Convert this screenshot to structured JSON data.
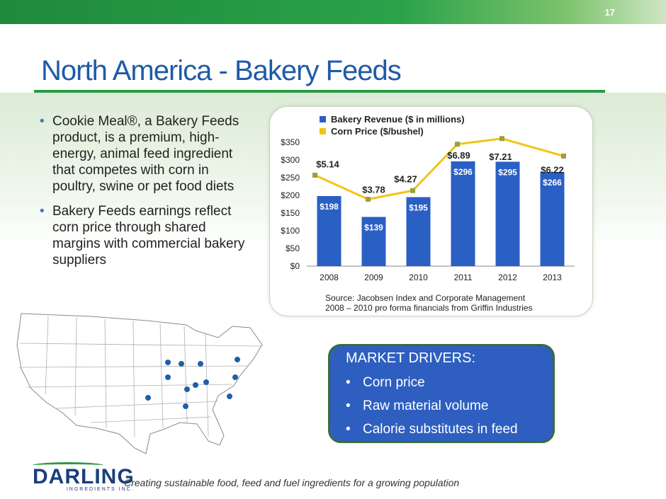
{
  "page_number": "17",
  "title": "North America - Bakery Feeds",
  "bullets": [
    "Cookie Meal®, a Bakery Feeds product, is a premium, high-energy, animal feed ingredient that competes with corn in poultry, swine or pet food diets",
    "Bakery Feeds earnings reflect corn price through shared margins with commercial bakery suppliers"
  ],
  "chart_data": {
    "type": "bar",
    "categories": [
      "2008",
      "2009",
      "2010",
      "2011",
      "2012",
      "2013"
    ],
    "series": [
      {
        "name": "Bakery Revenue ($ in millions)",
        "type": "bar",
        "values": [
          198,
          139,
          195,
          296,
          295,
          266
        ],
        "labels": [
          "$198",
          "$139",
          "$195",
          "$296",
          "$295",
          "$266"
        ],
        "color": "#2a5fc4"
      },
      {
        "name": "Corn Price ($/bushel)",
        "type": "line",
        "values": [
          5.14,
          3.78,
          4.27,
          6.89,
          7.21,
          6.22
        ],
        "labels": [
          "$5.14",
          "$3.78",
          "$4.27",
          "$6.89",
          "$7.21",
          "$6.22"
        ],
        "color": "#f2c418",
        "marker_color": "#9aa23a"
      }
    ],
    "y_ticks": [
      "$0",
      "$50",
      "$100",
      "$150",
      "$200",
      "$250",
      "$300",
      "$350"
    ],
    "ylim": [
      0,
      350
    ],
    "grid": false,
    "legend_position": "top",
    "source_lines": [
      "Source:  Jacobsen Index and Corporate Management",
      "2008 – 2010 pro forma financials from Griffin Industries"
    ]
  },
  "market_drivers": {
    "heading": "MARKET DRIVERS:",
    "items": [
      "Corn price",
      "Raw material volume",
      "Calorie substitutes in feed"
    ]
  },
  "logo": {
    "name": "DARLING",
    "sub": "INGREDIENTS INC."
  },
  "tagline": "Creating sustainable food, feed and fuel ingredients for a growing population"
}
